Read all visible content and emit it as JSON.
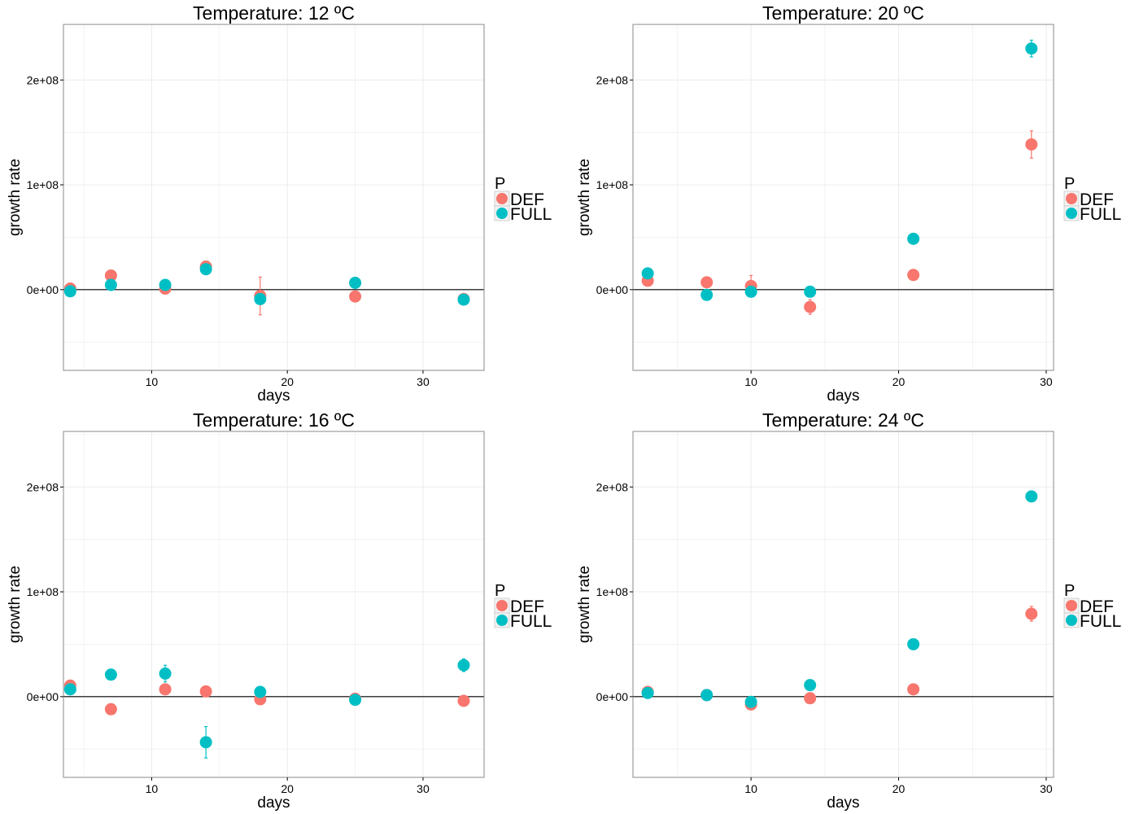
{
  "legend": {
    "title": "P",
    "entries": [
      {
        "name": "DEF",
        "color": "#F8766D"
      },
      {
        "name": "FULL",
        "color": "#00BFC4"
      }
    ]
  },
  "axis_style": {
    "zero_line": true,
    "grid": true,
    "background": "#ffffff",
    "grid_color": "#ebebeb"
  },
  "chart_data": [
    {
      "type": "scatter",
      "title": "Temperature: 12 ºC",
      "xlabel": "days",
      "ylabel": "growth rate",
      "xlim": [
        3.5,
        34.5
      ],
      "ylim": [
        -77000000,
        253000000
      ],
      "x_ticks": [
        10,
        20,
        30
      ],
      "y_ticks": [
        0,
        100000000,
        200000000
      ],
      "y_tick_labels": [
        "0e+00",
        "1e+08",
        "2e+08"
      ],
      "series": [
        {
          "name": "DEF",
          "color": "#F8766D",
          "points": [
            {
              "x": 4,
              "y": 1000000,
              "err": 1000000
            },
            {
              "x": 7,
              "y": 13500000,
              "err": 1500000
            },
            {
              "x": 11,
              "y": 1000000,
              "err": 1000000
            },
            {
              "x": 14,
              "y": 22000000,
              "err": 3000000
            },
            {
              "x": 18,
              "y": -6000000,
              "err": 18000000
            },
            {
              "x": 25,
              "y": -6500000,
              "err": 5000000
            },
            {
              "x": 33,
              "y": -9000000,
              "err": 1000000
            }
          ]
        },
        {
          "name": "FULL",
          "color": "#00BFC4",
          "points": [
            {
              "x": 4,
              "y": -1500000,
              "err": 1000000
            },
            {
              "x": 7,
              "y": 4500000,
              "err": 1000000
            },
            {
              "x": 11,
              "y": 4500000,
              "err": 1000000
            },
            {
              "x": 14,
              "y": 19500000,
              "err": 2000000
            },
            {
              "x": 18,
              "y": -9000000,
              "err": 2000000
            },
            {
              "x": 25,
              "y": 6500000,
              "err": 1000000
            },
            {
              "x": 33,
              "y": -9500000,
              "err": 1000000
            }
          ]
        }
      ]
    },
    {
      "type": "scatter",
      "title": "Temperature: 20 ºC",
      "xlabel": "days",
      "ylabel": "growth rate",
      "xlim": [
        2.0,
        30.5
      ],
      "ylim": [
        -77000000,
        253000000
      ],
      "x_ticks": [
        10,
        20,
        30
      ],
      "y_ticks": [
        0,
        100000000,
        200000000
      ],
      "y_tick_labels": [
        "0e+00",
        "1e+08",
        "2e+08"
      ],
      "series": [
        {
          "name": "DEF",
          "color": "#F8766D",
          "points": [
            {
              "x": 3,
              "y": 8500000,
              "err": 1000000
            },
            {
              "x": 7,
              "y": 7000000,
              "err": 1000000
            },
            {
              "x": 10,
              "y": 3500000,
              "err": 10000000
            },
            {
              "x": 14,
              "y": -16500000,
              "err": 7000000
            },
            {
              "x": 21,
              "y": 14000000,
              "err": 1000000
            },
            {
              "x": 29,
              "y": 138500000,
              "err": 13000000
            }
          ]
        },
        {
          "name": "FULL",
          "color": "#00BFC4",
          "points": [
            {
              "x": 3,
              "y": 15500000,
              "err": 1000000
            },
            {
              "x": 7,
              "y": -5000000,
              "err": 1000000
            },
            {
              "x": 10,
              "y": -2000000,
              "err": 1000000
            },
            {
              "x": 14,
              "y": -2000000,
              "err": 1000000
            },
            {
              "x": 21,
              "y": 48500000,
              "err": 1000000
            },
            {
              "x": 29,
              "y": 230000000,
              "err": 8000000
            }
          ]
        }
      ]
    },
    {
      "type": "scatter",
      "title": "Temperature: 16 ºC",
      "xlabel": "days",
      "ylabel": "growth rate",
      "xlim": [
        3.5,
        34.5
      ],
      "ylim": [
        -77000000,
        253000000
      ],
      "x_ticks": [
        10,
        20,
        30
      ],
      "y_ticks": [
        0,
        100000000,
        200000000
      ],
      "y_tick_labels": [
        "0e+00",
        "1e+08",
        "2e+08"
      ],
      "series": [
        {
          "name": "DEF",
          "color": "#F8766D",
          "points": [
            {
              "x": 4,
              "y": 10500000,
              "err": 1000000
            },
            {
              "x": 7,
              "y": -12000000,
              "err": 1000000
            },
            {
              "x": 11,
              "y": 7000000,
              "err": 1000000
            },
            {
              "x": 14,
              "y": 5000000,
              "err": 1000000
            },
            {
              "x": 18,
              "y": -2500000,
              "err": 1000000
            },
            {
              "x": 25,
              "y": -2000000,
              "err": 1000000
            },
            {
              "x": 33,
              "y": -4000000,
              "err": 1000000
            }
          ]
        },
        {
          "name": "FULL",
          "color": "#00BFC4",
          "points": [
            {
              "x": 4,
              "y": 7000000,
              "err": 1000000
            },
            {
              "x": 7,
              "y": 21000000,
              "err": 3000000
            },
            {
              "x": 11,
              "y": 22000000,
              "err": 8000000
            },
            {
              "x": 14,
              "y": -43500000,
              "err": 15000000
            },
            {
              "x": 18,
              "y": 4500000,
              "err": 1000000
            },
            {
              "x": 25,
              "y": -3000000,
              "err": 1000000
            },
            {
              "x": 33,
              "y": 30000000,
              "err": 6000000
            }
          ]
        }
      ]
    },
    {
      "type": "scatter",
      "title": "Temperature: 24 ºC",
      "xlabel": "days",
      "ylabel": "growth rate",
      "xlim": [
        2.0,
        30.5
      ],
      "ylim": [
        -77000000,
        253000000
      ],
      "x_ticks": [
        10,
        20,
        30
      ],
      "y_ticks": [
        0,
        100000000,
        200000000
      ],
      "y_tick_labels": [
        "0e+00",
        "1e+08",
        "2e+08"
      ],
      "series": [
        {
          "name": "DEF",
          "color": "#F8766D",
          "points": [
            {
              "x": 3,
              "y": 4500000,
              "err": 1000000
            },
            {
              "x": 7,
              "y": 1500000,
              "err": 1000000
            },
            {
              "x": 10,
              "y": -7500000,
              "err": 1000000
            },
            {
              "x": 14,
              "y": -1500000,
              "err": 1000000
            },
            {
              "x": 21,
              "y": 7000000,
              "err": 1000000
            },
            {
              "x": 29,
              "y": 79000000,
              "err": 7000000
            }
          ]
        },
        {
          "name": "FULL",
          "color": "#00BFC4",
          "points": [
            {
              "x": 3,
              "y": 3500000,
              "err": 1000000
            },
            {
              "x": 7,
              "y": 1500000,
              "err": 1000000
            },
            {
              "x": 10,
              "y": -5000000,
              "err": 1000000
            },
            {
              "x": 14,
              "y": 11000000,
              "err": 1000000
            },
            {
              "x": 21,
              "y": 50000000,
              "err": 1000000
            },
            {
              "x": 29,
              "y": 191000000,
              "err": 1000000
            }
          ]
        }
      ]
    }
  ]
}
